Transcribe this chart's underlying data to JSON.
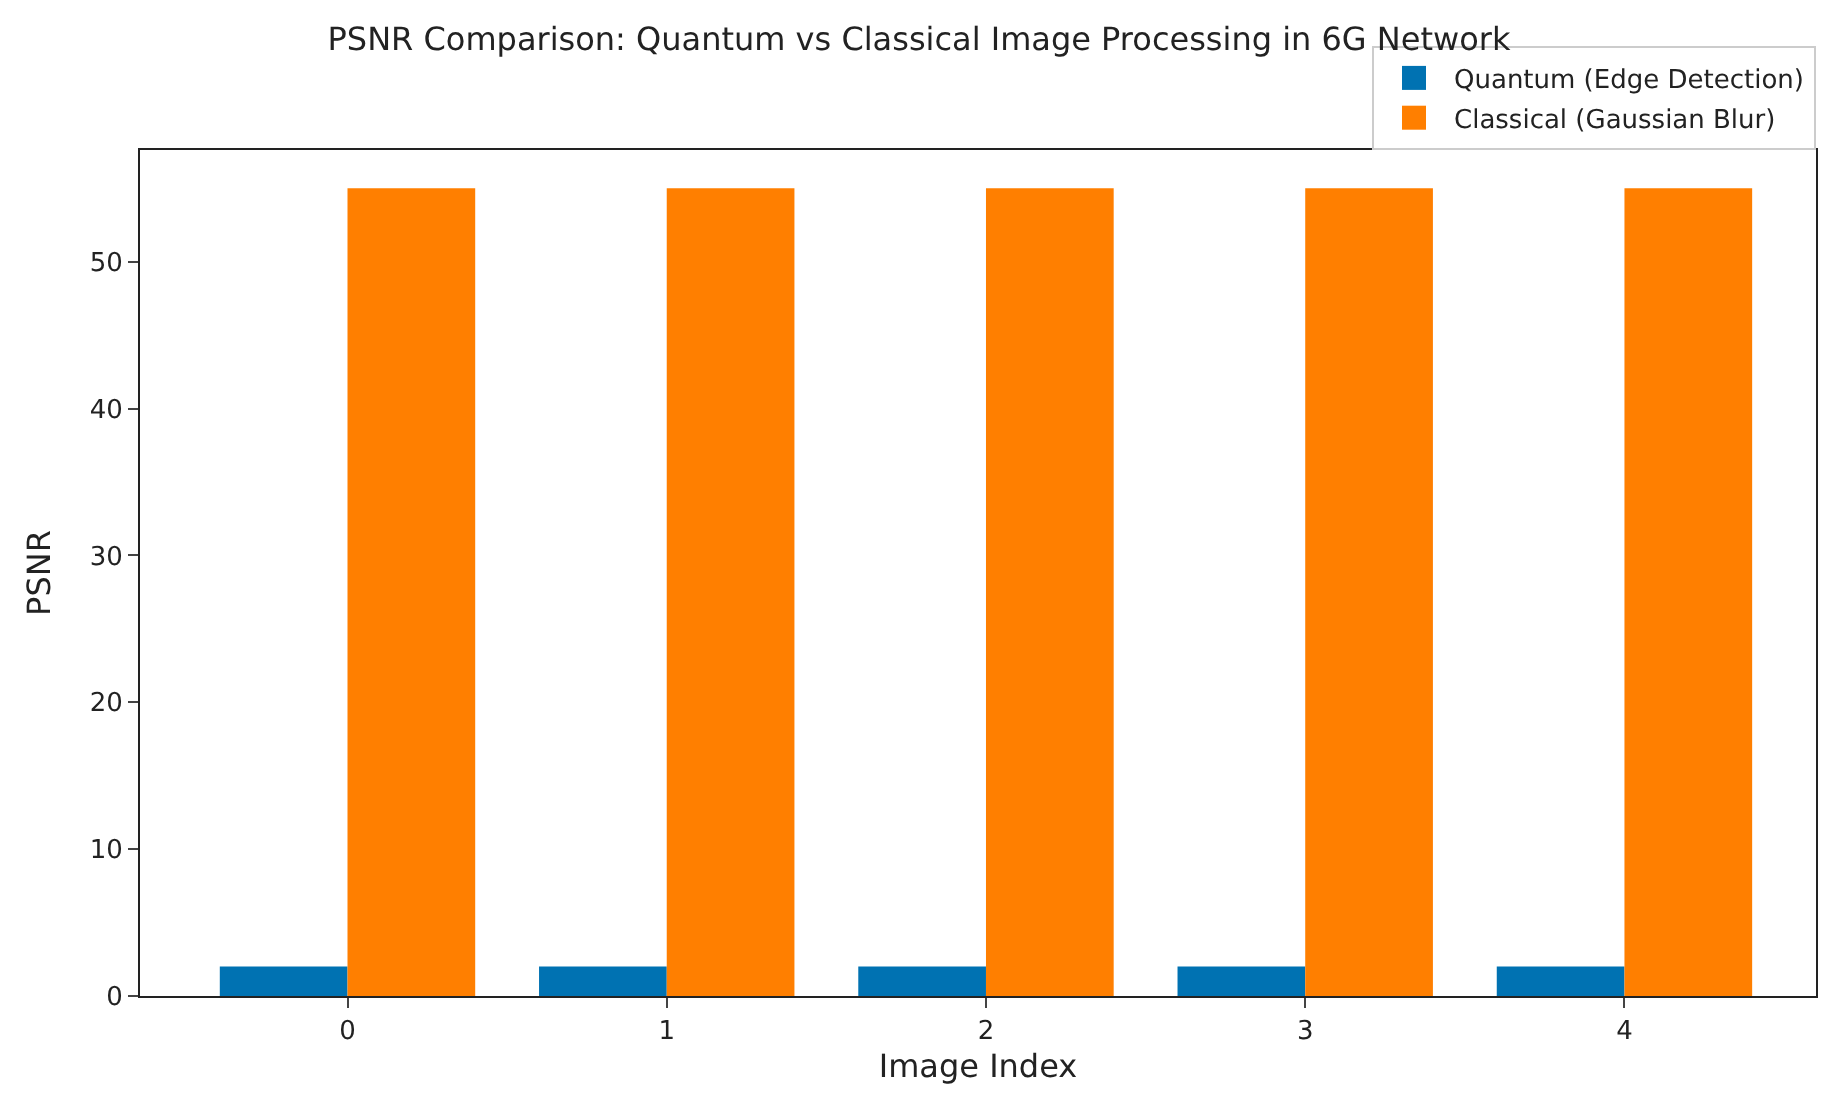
{
  "chart_data": {
    "type": "bar",
    "title": "PSNR Comparison: Quantum vs Classical Image Processing in 6G Network",
    "xlabel": "Image Index",
    "ylabel": "PSNR",
    "x": [
      0,
      1,
      2,
      3,
      4
    ],
    "series": [
      {
        "name": "Quantum (Edge Detection)",
        "color": "#0072b2",
        "values": [
          2,
          2,
          2,
          2,
          2
        ]
      },
      {
        "name": "Classical (Gaussian Blur)",
        "color": "#ff7f00",
        "values": [
          55,
          55,
          55,
          55,
          55
        ]
      }
    ],
    "xlim": [
      -0.65,
      4.6
    ],
    "xticks": [
      0,
      1,
      2,
      3,
      4
    ],
    "ylim": [
      0,
      57.6
    ],
    "yticks": [
      0,
      10,
      20,
      30,
      40,
      50
    ],
    "legend": "top right"
  }
}
